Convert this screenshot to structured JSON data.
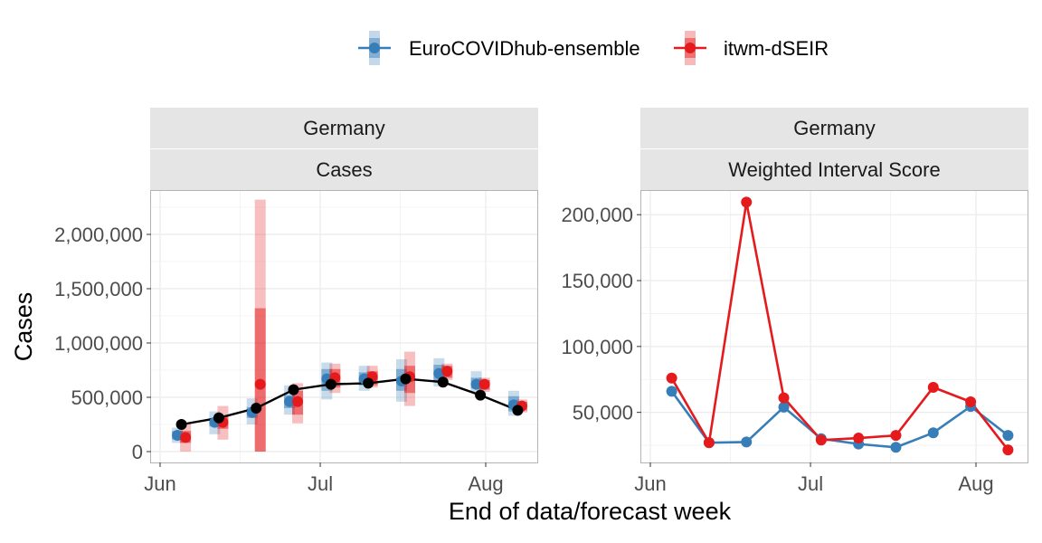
{
  "legend": {
    "items": [
      {
        "label": "EuroCOVIDhub-ensemble",
        "color": "#377eb8"
      },
      {
        "label": "itwm-dSEIR",
        "color": "#e41a1c"
      }
    ],
    "placement": "top"
  },
  "xlabel": "End of data/forecast week",
  "colors": {
    "ensemble": "#377eb8",
    "itwm": "#e41a1c",
    "observed": "#000000",
    "strip": "#e5e5e5",
    "grid": "#ebebeb"
  },
  "chart_data": [
    {
      "type": "line",
      "strip_top": "Germany",
      "strip_bottom": "Cases",
      "ylabel": "Cases",
      "x_ticks": [
        "Jun",
        "Jul",
        "Aug"
      ],
      "y_ticks": [
        "0",
        "500,000",
        "1,000,000",
        "1,500,000",
        "2,000,000"
      ],
      "ylim": [
        -100000,
        2400000
      ],
      "grid": true,
      "dates": [
        "2021-06-05",
        "2021-06-12",
        "2021-06-19",
        "2021-06-26",
        "2021-07-03",
        "2021-07-10",
        "2021-07-17",
        "2021-07-24",
        "2021-07-31",
        "2021-08-07"
      ],
      "observed": [
        250000,
        310000,
        400000,
        570000,
        620000,
        630000,
        670000,
        640000,
        520000,
        380000
      ],
      "series": [
        {
          "name": "EuroCOVIDhub-ensemble",
          "color": "#377eb8",
          "values": [
            150000,
            270000,
            360000,
            460000,
            670000,
            670000,
            650000,
            720000,
            620000,
            430000
          ],
          "inner": [
            [
              110000,
              190000
            ],
            [
              230000,
              310000
            ],
            [
              310000,
              410000
            ],
            [
              400000,
              520000
            ],
            [
              560000,
              760000
            ],
            [
              610000,
              730000
            ],
            [
              560000,
              760000
            ],
            [
              650000,
              800000
            ],
            [
              580000,
              680000
            ],
            [
              370000,
              510000
            ]
          ],
          "outer": [
            [
              80000,
              220000
            ],
            [
              160000,
              370000
            ],
            [
              250000,
              490000
            ],
            [
              340000,
              610000
            ],
            [
              480000,
              820000
            ],
            [
              560000,
              790000
            ],
            [
              460000,
              850000
            ],
            [
              600000,
              860000
            ],
            [
              550000,
              740000
            ],
            [
              330000,
              560000
            ]
          ]
        },
        {
          "name": "itwm-dSEIR",
          "color": "#e41a1c",
          "values": [
            130000,
            270000,
            620000,
            460000,
            680000,
            690000,
            690000,
            740000,
            620000,
            420000
          ],
          "inner": [
            [
              80000,
              190000
            ],
            [
              210000,
              330000
            ],
            [
              0,
              1320000
            ],
            [
              340000,
              560000
            ],
            [
              590000,
              760000
            ],
            [
              610000,
              740000
            ],
            [
              540000,
              790000
            ],
            [
              680000,
              790000
            ],
            [
              570000,
              660000
            ],
            [
              380000,
              460000
            ]
          ],
          "outer": [
            [
              0,
              260000
            ],
            [
              110000,
              420000
            ],
            [
              0,
              2320000
            ],
            [
              260000,
              630000
            ],
            [
              540000,
              810000
            ],
            [
              590000,
              790000
            ],
            [
              420000,
              920000
            ],
            [
              660000,
              810000
            ],
            [
              550000,
              680000
            ],
            [
              360000,
              480000
            ]
          ]
        }
      ]
    },
    {
      "type": "line",
      "strip_top": "Germany",
      "strip_bottom": "Weighted Interval Score",
      "x_ticks": [
        "Jun",
        "Jul",
        "Aug"
      ],
      "y_ticks": [
        "50,000",
        "100,000",
        "150,000",
        "200,000"
      ],
      "ylim": [
        12000,
        218000
      ],
      "grid": true,
      "dates": [
        "2021-06-05",
        "2021-06-12",
        "2021-06-19",
        "2021-06-26",
        "2021-07-03",
        "2021-07-10",
        "2021-07-17",
        "2021-07-24",
        "2021-07-31",
        "2021-08-07"
      ],
      "series": [
        {
          "name": "EuroCOVIDhub-ensemble",
          "color": "#377eb8",
          "values": [
            66000,
            27000,
            27500,
            54000,
            30000,
            26000,
            23500,
            34500,
            54500,
            32500
          ]
        },
        {
          "name": "itwm-dSEIR",
          "color": "#e41a1c",
          "values": [
            76000,
            27000,
            209500,
            61000,
            29000,
            30500,
            32500,
            69000,
            58000,
            21500
          ]
        }
      ]
    }
  ]
}
